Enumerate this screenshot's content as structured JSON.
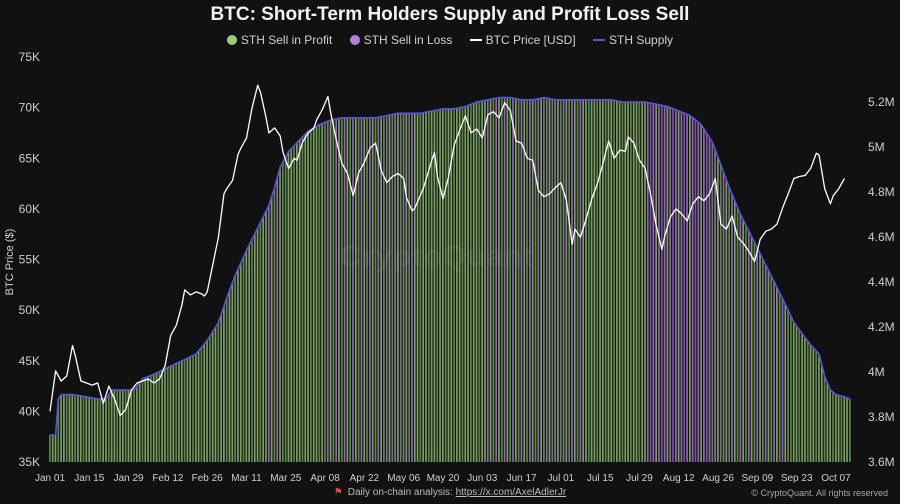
{
  "chart_data": {
    "type": "bar",
    "title": "BTC: Short-Term Holders Supply and Profit Loss Sell",
    "ylabel": "BTC Price ($)",
    "ylim": [
      35000,
      75000
    ],
    "y2lim": [
      3.6,
      5.4
    ],
    "yticks": [
      "35K",
      "40K",
      "45K",
      "50K",
      "55K",
      "60K",
      "65K",
      "70K",
      "75K"
    ],
    "yticks_values": [
      35000,
      40000,
      45000,
      50000,
      55000,
      60000,
      65000,
      70000,
      75000
    ],
    "y2ticks": [
      "3.6M",
      "3.8M",
      "4M",
      "4.2M",
      "4.4M",
      "4.6M",
      "4.8M",
      "5M",
      "5.2M"
    ],
    "y2ticks_values": [
      3.6,
      3.8,
      4.0,
      4.2,
      4.4,
      4.6,
      4.8,
      5.0,
      5.2
    ],
    "xticks": [
      "Jan 01",
      "Jan 15",
      "Jan 29",
      "Feb 12",
      "Feb 26",
      "Mar 11",
      "Mar 25",
      "Apr 08",
      "Apr 22",
      "May 06",
      "May 20",
      "Jun 03",
      "Jun 17",
      "Jul 01",
      "Jul 15",
      "Jul 29",
      "Aug 12",
      "Aug 26",
      "Sep 09",
      "Sep 23",
      "Oct 07"
    ],
    "xticks_days": [
      0,
      14,
      28,
      42,
      56,
      70,
      84,
      98,
      112,
      126,
      140,
      154,
      168,
      182,
      196,
      210,
      224,
      238,
      252,
      266,
      280
    ],
    "legend": [
      {
        "name": "STH Sell in Profit",
        "color": "#9bd07a",
        "kind": "dot"
      },
      {
        "name": "STH Sell in Loss",
        "color": "#b57fe0",
        "kind": "dot"
      },
      {
        "name": "BTC Price [USD]",
        "color": "#ffffff",
        "kind": "line"
      },
      {
        "name": "STH Supply",
        "color": "#5a54d8",
        "kind": "line"
      }
    ],
    "sth_supply_points": [
      [
        0,
        3.72
      ],
      [
        2,
        3.72
      ],
      [
        3,
        3.88
      ],
      [
        4,
        3.9
      ],
      [
        8,
        3.9
      ],
      [
        13,
        3.89
      ],
      [
        17,
        3.88
      ],
      [
        20,
        3.88
      ],
      [
        22,
        3.92
      ],
      [
        26,
        3.92
      ],
      [
        30,
        3.92
      ],
      [
        33,
        3.97
      ],
      [
        37,
        3.99
      ],
      [
        42,
        4.02
      ],
      [
        47,
        4.05
      ],
      [
        52,
        4.08
      ],
      [
        56,
        4.14
      ],
      [
        60,
        4.22
      ],
      [
        63,
        4.33
      ],
      [
        66,
        4.43
      ],
      [
        70,
        4.54
      ],
      [
        74,
        4.64
      ],
      [
        78,
        4.74
      ],
      [
        80,
        4.82
      ],
      [
        82,
        4.91
      ],
      [
        85,
        4.98
      ],
      [
        88,
        5.02
      ],
      [
        92,
        5.07
      ],
      [
        96,
        5.1
      ],
      [
        100,
        5.12
      ],
      [
        104,
        5.13
      ],
      [
        108,
        5.13
      ],
      [
        112,
        5.13
      ],
      [
        116,
        5.13
      ],
      [
        120,
        5.14
      ],
      [
        124,
        5.15
      ],
      [
        128,
        5.15
      ],
      [
        132,
        5.15
      ],
      [
        136,
        5.16
      ],
      [
        140,
        5.17
      ],
      [
        144,
        5.17
      ],
      [
        148,
        5.18
      ],
      [
        152,
        5.2
      ],
      [
        156,
        5.21
      ],
      [
        160,
        5.22
      ],
      [
        164,
        5.22
      ],
      [
        168,
        5.21
      ],
      [
        172,
        5.21
      ],
      [
        176,
        5.22
      ],
      [
        180,
        5.21
      ],
      [
        184,
        5.21
      ],
      [
        188,
        5.21
      ],
      [
        192,
        5.21
      ],
      [
        196,
        5.21
      ],
      [
        200,
        5.21
      ],
      [
        204,
        5.2
      ],
      [
        208,
        5.2
      ],
      [
        212,
        5.2
      ],
      [
        216,
        5.19
      ],
      [
        220,
        5.18
      ],
      [
        224,
        5.16
      ],
      [
        228,
        5.14
      ],
      [
        232,
        5.1
      ],
      [
        236,
        5.02
      ],
      [
        239,
        4.92
      ],
      [
        242,
        4.82
      ],
      [
        246,
        4.7
      ],
      [
        250,
        4.6
      ],
      [
        254,
        4.5
      ],
      [
        258,
        4.4
      ],
      [
        262,
        4.3
      ],
      [
        265,
        4.22
      ],
      [
        268,
        4.17
      ],
      [
        271,
        4.12
      ],
      [
        274,
        4.08
      ],
      [
        276,
        3.98
      ],
      [
        278,
        3.92
      ],
      [
        280,
        3.9
      ],
      [
        283,
        3.89
      ],
      [
        285,
        3.88
      ]
    ],
    "btc_price_points": [
      [
        0,
        40000
      ],
      [
        2,
        44000
      ],
      [
        4,
        43000
      ],
      [
        6,
        43500
      ],
      [
        8,
        46500
      ],
      [
        9,
        45500
      ],
      [
        11,
        43000
      ],
      [
        13,
        42800
      ],
      [
        15,
        42600
      ],
      [
        17,
        42800
      ],
      [
        19,
        40800
      ],
      [
        21,
        42500
      ],
      [
        23,
        41200
      ],
      [
        25,
        39600
      ],
      [
        27,
        40200
      ],
      [
        29,
        42100
      ],
      [
        31,
        42800
      ],
      [
        33,
        43000
      ],
      [
        35,
        43200
      ],
      [
        37,
        42800
      ],
      [
        39,
        43200
      ],
      [
        41,
        44500
      ],
      [
        43,
        47500
      ],
      [
        45,
        48500
      ],
      [
        47,
        50500
      ],
      [
        48,
        52000
      ],
      [
        50,
        51500
      ],
      [
        52,
        51800
      ],
      [
        54,
        51600
      ],
      [
        55,
        51400
      ],
      [
        56,
        51800
      ],
      [
        58,
        54500
      ],
      [
        60,
        57200
      ],
      [
        62,
        61500
      ],
      [
        63,
        62000
      ],
      [
        65,
        62800
      ],
      [
        67,
        65400
      ],
      [
        68,
        66000
      ],
      [
        70,
        67000
      ],
      [
        72,
        70000
      ],
      [
        74,
        72200
      ],
      [
        75,
        71500
      ],
      [
        77,
        69000
      ],
      [
        78,
        67500
      ],
      [
        80,
        68000
      ],
      [
        82,
        67200
      ],
      [
        83,
        65600
      ],
      [
        85,
        64000
      ],
      [
        87,
        65000
      ],
      [
        88,
        64800
      ],
      [
        90,
        66600
      ],
      [
        92,
        67500
      ],
      [
        94,
        68000
      ],
      [
        95,
        68800
      ],
      [
        97,
        69800
      ],
      [
        99,
        71100
      ],
      [
        100,
        69500
      ],
      [
        102,
        66800
      ],
      [
        104,
        64500
      ],
      [
        106,
        63500
      ],
      [
        108,
        61300
      ],
      [
        110,
        63600
      ],
      [
        112,
        64600
      ],
      [
        114,
        66000
      ],
      [
        116,
        66500
      ],
      [
        118,
        63800
      ],
      [
        120,
        62600
      ],
      [
        122,
        63200
      ],
      [
        124,
        63500
      ],
      [
        126,
        63000
      ],
      [
        127,
        61100
      ],
      [
        129,
        59800
      ],
      [
        130,
        60100
      ],
      [
        133,
        62000
      ],
      [
        136,
        64800
      ],
      [
        137,
        65600
      ],
      [
        138,
        63200
      ],
      [
        140,
        61000
      ],
      [
        142,
        63200
      ],
      [
        144,
        66300
      ],
      [
        146,
        67800
      ],
      [
        148,
        69200
      ],
      [
        150,
        67500
      ],
      [
        152,
        67900
      ],
      [
        154,
        67000
      ],
      [
        156,
        69300
      ],
      [
        158,
        69600
      ],
      [
        160,
        69000
      ],
      [
        162,
        70500
      ],
      [
        164,
        69700
      ],
      [
        166,
        66700
      ],
      [
        168,
        66500
      ],
      [
        170,
        65000
      ],
      [
        172,
        64800
      ],
      [
        174,
        61800
      ],
      [
        176,
        61200
      ],
      [
        178,
        61500
      ],
      [
        180,
        62100
      ],
      [
        182,
        62600
      ],
      [
        184,
        60800
      ],
      [
        186,
        56500
      ],
      [
        187,
        58000
      ],
      [
        189,
        57200
      ],
      [
        191,
        59000
      ],
      [
        193,
        61000
      ],
      [
        195,
        62500
      ],
      [
        197,
        64500
      ],
      [
        199,
        66700
      ],
      [
        201,
        65000
      ],
      [
        203,
        65800
      ],
      [
        205,
        65700
      ],
      [
        206,
        67100
      ],
      [
        208,
        66500
      ],
      [
        210,
        64800
      ],
      [
        212,
        64000
      ],
      [
        214,
        61400
      ],
      [
        216,
        58300
      ],
      [
        218,
        56000
      ],
      [
        219,
        57300
      ],
      [
        221,
        59200
      ],
      [
        223,
        60000
      ],
      [
        225,
        59500
      ],
      [
        227,
        58800
      ],
      [
        229,
        60500
      ],
      [
        231,
        61200
      ],
      [
        233,
        60800
      ],
      [
        235,
        61500
      ],
      [
        237,
        63000
      ],
      [
        239,
        58500
      ],
      [
        241,
        58000
      ],
      [
        243,
        59300
      ],
      [
        245,
        57200
      ],
      [
        247,
        56600
      ],
      [
        249,
        55800
      ],
      [
        251,
        54800
      ],
      [
        253,
        57000
      ],
      [
        255,
        57800
      ],
      [
        257,
        58000
      ],
      [
        259,
        58500
      ],
      [
        261,
        60100
      ],
      [
        263,
        61500
      ],
      [
        265,
        63000
      ],
      [
        267,
        63200
      ],
      [
        269,
        63300
      ],
      [
        271,
        64000
      ],
      [
        273,
        65500
      ],
      [
        274,
        65300
      ],
      [
        276,
        62000
      ],
      [
        278,
        60500
      ],
      [
        279,
        61300
      ],
      [
        281,
        62000
      ],
      [
        283,
        63000
      ]
    ],
    "bar_sell_type_by_segment": [
      [
        0,
        78,
        "profit"
      ],
      [
        78,
        84,
        "mixed"
      ],
      [
        84,
        98,
        "profit"
      ],
      [
        98,
        130,
        "mixed"
      ],
      [
        130,
        156,
        "profit"
      ],
      [
        156,
        190,
        "mixed"
      ],
      [
        190,
        212,
        "profit"
      ],
      [
        212,
        236,
        "loss"
      ],
      [
        236,
        264,
        "mixed"
      ],
      [
        264,
        285,
        "profit"
      ]
    ]
  },
  "footer": {
    "text": "Daily on-chain analysis: ",
    "link": "https://x.com/AxelAdlerJr",
    "copyright": "© CryptoQuant. All rights reserved"
  },
  "watermark": "CryptoQuant"
}
